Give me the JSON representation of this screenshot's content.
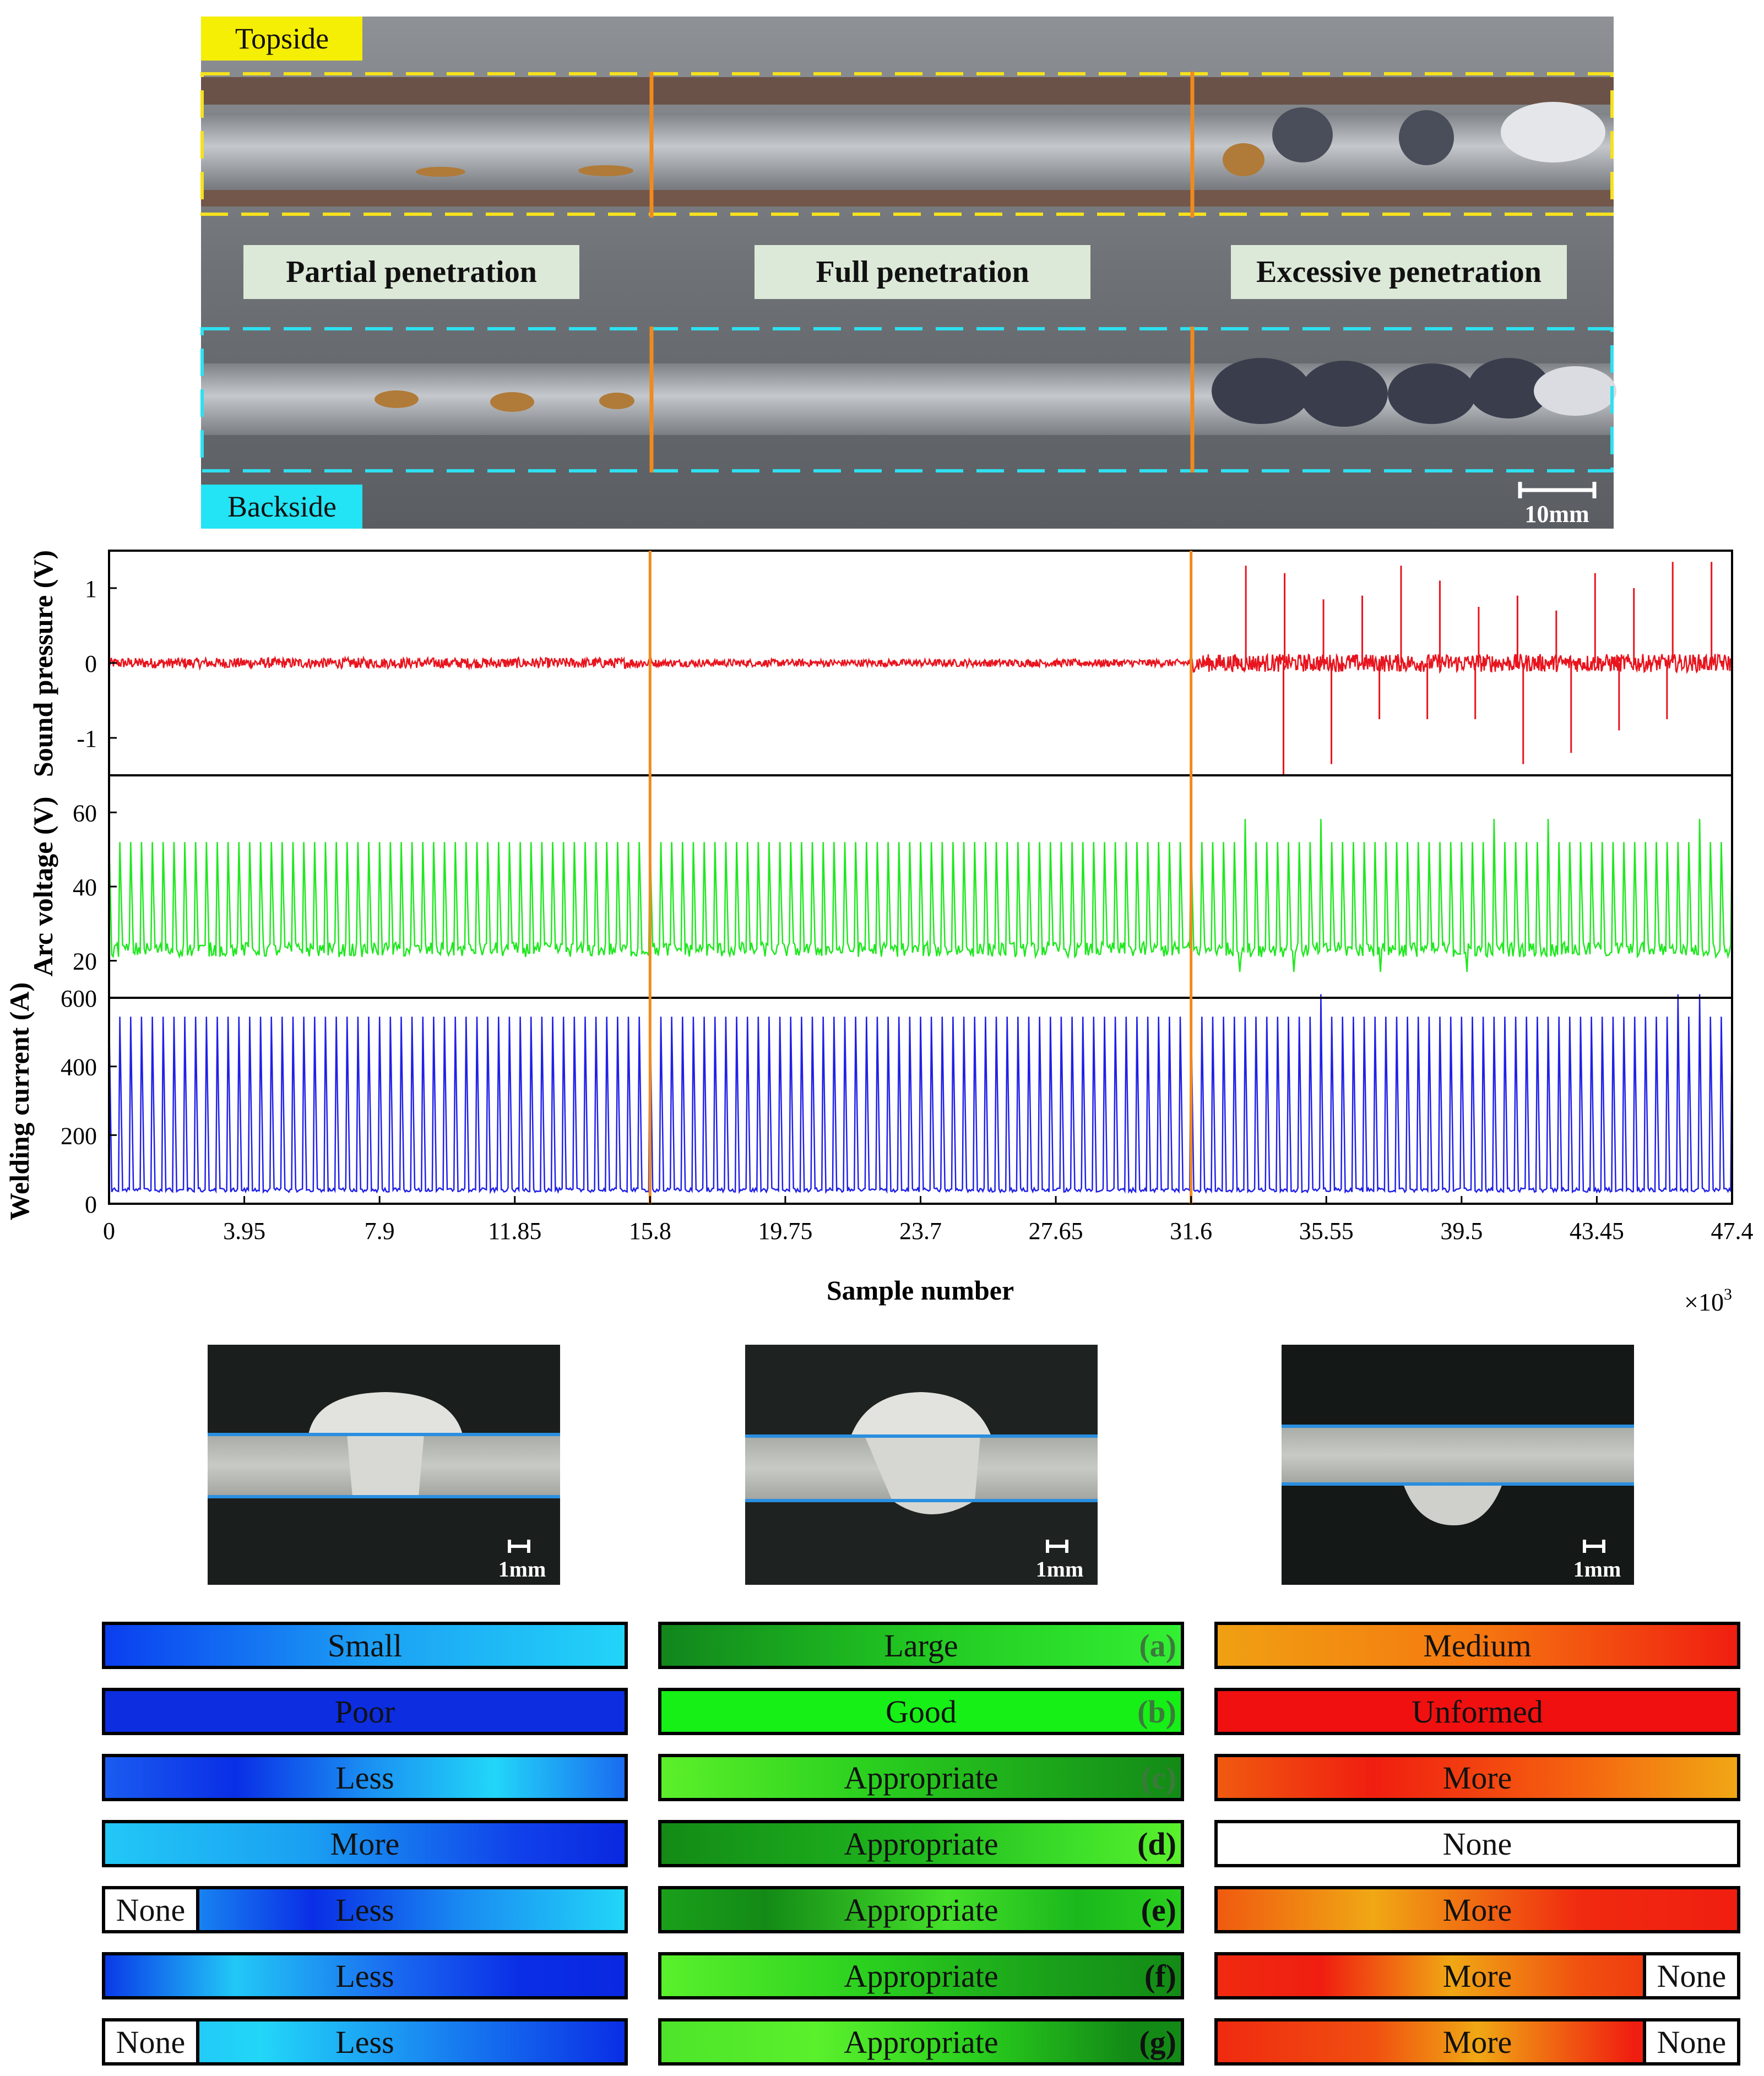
{
  "photo": {
    "topside_label": "Topside",
    "backside_label": "Backside",
    "zones": [
      "Partial penetration",
      "Full penetration",
      "Excessive penetration"
    ],
    "scale_bar": "10mm"
  },
  "chart_data": {
    "type": "line",
    "xlabel": "Sample number",
    "x_multiplier": "×10",
    "x_multiplier_exp": "3",
    "x_ticks": [
      "0",
      "3.95",
      "7.9",
      "11.85",
      "15.8",
      "19.75",
      "23.7",
      "27.65",
      "31.6",
      "35.55",
      "39.5",
      "43.45",
      "47.4"
    ],
    "xlim": [
      0,
      47.4
    ],
    "boundaries": [
      15.8,
      31.6
    ],
    "panels": [
      {
        "name": "Sound pressure (V)",
        "ylabel": "Sound pressure (V)",
        "ylim": [
          -1.5,
          1.5
        ],
        "ticks": [
          1,
          0,
          -1
        ],
        "tick_labels": [
          "1",
          "0",
          "-1"
        ],
        "color": "#e8141e",
        "baseline": 0,
        "noise_levels": [
          0.07,
          0.05,
          0.12
        ],
        "spikes_up": [
          1.3,
          1.2,
          0.85,
          0.9,
          1.3,
          1.1,
          0.75,
          0.9,
          0.7,
          1.2,
          1.0,
          1.35,
          1.35
        ],
        "spikes_down": [
          -1.5,
          -1.35,
          -0.75,
          -0.75,
          -0.75,
          -1.35,
          -1.2,
          -0.9,
          -0.75
        ]
      },
      {
        "name": "Arc voltage (V)",
        "ylabel": "Arc voltage (V)",
        "ylim": [
          10,
          70
        ],
        "ticks": [
          60,
          40,
          20
        ],
        "tick_labels": [
          "60",
          "40",
          "20"
        ],
        "color": "#1ee81e",
        "pulse_low": 23,
        "pulse_high": 52
      },
      {
        "name": "Welding current (A)",
        "ylabel": "Welding current (A)",
        "ylim": [
          0,
          600
        ],
        "ticks": [
          600,
          400,
          200,
          0
        ],
        "tick_labels": [
          "600",
          "400",
          "200",
          "0"
        ],
        "color": "#2020e8",
        "pulse_low": 40,
        "pulse_high": 545
      }
    ]
  },
  "cross_sections": {
    "scale": "1mm"
  },
  "legend_rows": [
    {
      "label": "(a)",
      "partial": "Small",
      "full": "Large",
      "excess": "Medium"
    },
    {
      "label": "(b)",
      "partial": "Poor",
      "full": "Good",
      "excess": "Unformed"
    },
    {
      "label": "(c)",
      "partial": "Less",
      "full": "Appropriate",
      "excess": "More"
    },
    {
      "label": "(d)",
      "partial": "More",
      "full": "Appropriate",
      "excess": "None"
    },
    {
      "label": "(e)",
      "partial": "Less",
      "partial_none": "None",
      "full": "Appropriate",
      "excess": "More"
    },
    {
      "label": "(f)",
      "partial": "Less",
      "full": "Appropriate",
      "excess": "More",
      "excess_none": "None"
    },
    {
      "label": "(g)",
      "partial": "Less",
      "partial_none": "None",
      "full": "Appropriate",
      "excess": "More",
      "excess_none": "None"
    }
  ],
  "colors": {
    "boundary": "#f08a1e",
    "top_box": "#f5e11e",
    "back_box": "#2ee0f0"
  }
}
